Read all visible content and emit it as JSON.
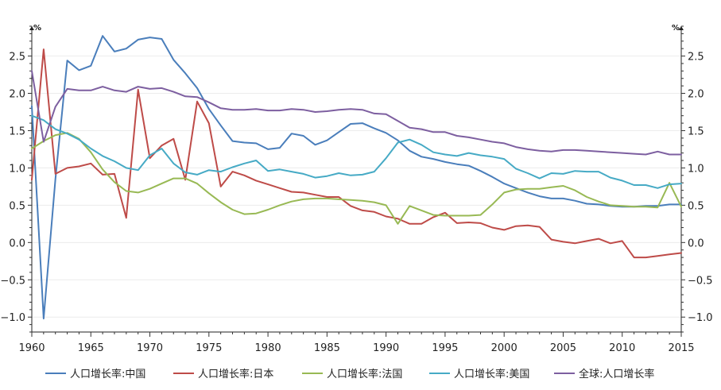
{
  "chart_data": {
    "type": "line",
    "left_axis_unit": "%",
    "right_axis_unit": "%",
    "x_ticks": [
      1960,
      1965,
      1970,
      1975,
      1980,
      1985,
      1990,
      1995,
      2000,
      2005,
      2010,
      2015
    ],
    "y_ticks": [
      -1.0,
      -0.5,
      0.0,
      0.5,
      1.0,
      1.5,
      2.0,
      2.5
    ],
    "y_tick_labels": [
      "−1.0",
      "−0.5",
      "0.0",
      "0.5",
      "1.0",
      "1.5",
      "2.0",
      "2.5"
    ],
    "xlim": [
      1960,
      2015
    ],
    "ylim": [
      -1.2,
      2.9
    ],
    "grid": "horizontal",
    "legend_position": "bottom",
    "x": [
      1960,
      1961,
      1962,
      1963,
      1964,
      1965,
      1966,
      1967,
      1968,
      1969,
      1970,
      1971,
      1972,
      1973,
      1974,
      1975,
      1976,
      1977,
      1978,
      1979,
      1980,
      1981,
      1982,
      1983,
      1984,
      1985,
      1986,
      1987,
      1988,
      1989,
      1990,
      1991,
      1992,
      1993,
      1994,
      1995,
      1996,
      1997,
      1998,
      1999,
      2000,
      2001,
      2002,
      2003,
      2004,
      2005,
      2006,
      2007,
      2008,
      2009,
      2010,
      2011,
      2012,
      2013,
      2014,
      2015
    ],
    "series": [
      {
        "name": "人口增长率:中国",
        "color": "#4a7ebb",
        "values": [
          1.83,
          -1.02,
          0.85,
          2.44,
          2.31,
          2.37,
          2.77,
          2.56,
          2.6,
          2.72,
          2.75,
          2.73,
          2.45,
          2.27,
          2.07,
          1.79,
          1.57,
          1.36,
          1.34,
          1.33,
          1.25,
          1.27,
          1.46,
          1.43,
          1.31,
          1.37,
          1.48,
          1.59,
          1.6,
          1.53,
          1.47,
          1.37,
          1.23,
          1.15,
          1.12,
          1.08,
          1.05,
          1.03,
          0.96,
          0.88,
          0.79,
          0.73,
          0.67,
          0.62,
          0.59,
          0.59,
          0.56,
          0.52,
          0.51,
          0.49,
          0.48,
          0.48,
          0.49,
          0.49,
          0.51,
          0.51
        ]
      },
      {
        "name": "人口增长率:日本",
        "color": "#be4b48",
        "values": [
          0.84,
          2.59,
          0.92,
          1.0,
          1.02,
          1.06,
          0.91,
          0.92,
          0.33,
          2.05,
          1.13,
          1.3,
          1.39,
          0.84,
          1.89,
          1.6,
          0.75,
          0.95,
          0.9,
          0.83,
          0.78,
          0.73,
          0.68,
          0.67,
          0.64,
          0.61,
          0.61,
          0.49,
          0.43,
          0.41,
          0.35,
          0.32,
          0.25,
          0.25,
          0.34,
          0.4,
          0.26,
          0.27,
          0.26,
          0.2,
          0.17,
          0.22,
          0.23,
          0.21,
          0.04,
          0.01,
          -0.01,
          0.02,
          0.05,
          -0.01,
          0.02,
          -0.2,
          -0.2,
          -0.18,
          -0.16,
          -0.14
        ]
      },
      {
        "name": "人口增长率:法国",
        "color": "#98b954",
        "values": [
          1.26,
          1.36,
          1.44,
          1.47,
          1.39,
          1.21,
          0.98,
          0.81,
          0.69,
          0.67,
          0.72,
          0.79,
          0.86,
          0.86,
          0.79,
          0.66,
          0.54,
          0.44,
          0.38,
          0.39,
          0.44,
          0.5,
          0.55,
          0.58,
          0.59,
          0.59,
          0.58,
          0.57,
          0.56,
          0.54,
          0.5,
          0.25,
          0.49,
          0.43,
          0.37,
          0.36,
          0.36,
          0.36,
          0.37,
          0.51,
          0.67,
          0.71,
          0.72,
          0.72,
          0.74,
          0.76,
          0.7,
          0.61,
          0.55,
          0.5,
          0.49,
          0.48,
          0.48,
          0.47,
          0.8,
          0.48
        ]
      },
      {
        "name": "人口增长率:美国",
        "color": "#46aac5",
        "values": [
          1.7,
          1.64,
          1.52,
          1.46,
          1.38,
          1.26,
          1.16,
          1.09,
          1.0,
          0.97,
          1.17,
          1.26,
          1.06,
          0.94,
          0.91,
          0.97,
          0.95,
          1.01,
          1.06,
          1.1,
          0.96,
          0.98,
          0.95,
          0.92,
          0.87,
          0.89,
          0.93,
          0.9,
          0.91,
          0.95,
          1.13,
          1.34,
          1.38,
          1.31,
          1.21,
          1.18,
          1.16,
          1.2,
          1.17,
          1.15,
          1.12,
          0.99,
          0.93,
          0.86,
          0.93,
          0.92,
          0.96,
          0.95,
          0.95,
          0.87,
          0.83,
          0.77,
          0.77,
          0.73,
          0.78,
          0.79
        ]
      },
      {
        "name": "全球:人口增长率",
        "color": "#7d5fa0",
        "values": [
          2.3,
          1.35,
          1.82,
          2.06,
          2.04,
          2.04,
          2.09,
          2.04,
          2.02,
          2.09,
          2.06,
          2.07,
          2.02,
          1.96,
          1.95,
          1.88,
          1.8,
          1.78,
          1.78,
          1.79,
          1.77,
          1.77,
          1.79,
          1.78,
          1.75,
          1.76,
          1.78,
          1.79,
          1.78,
          1.73,
          1.72,
          1.63,
          1.54,
          1.52,
          1.48,
          1.48,
          1.43,
          1.41,
          1.38,
          1.35,
          1.33,
          1.28,
          1.25,
          1.23,
          1.22,
          1.24,
          1.24,
          1.23,
          1.22,
          1.21,
          1.2,
          1.19,
          1.18,
          1.22,
          1.18,
          1.18
        ]
      }
    ]
  }
}
